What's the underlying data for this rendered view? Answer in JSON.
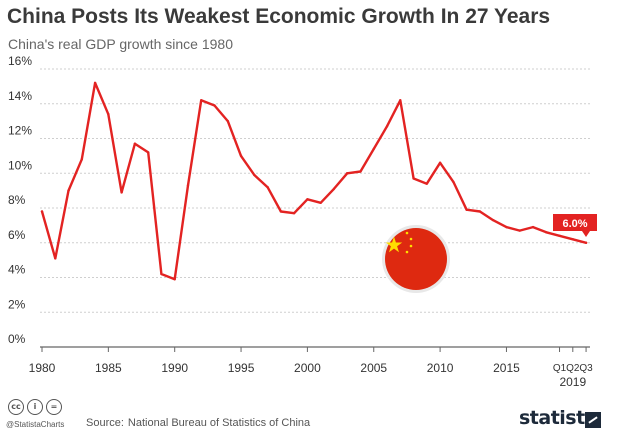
{
  "header": {
    "title": "China Posts Its Weakest Economic Growth In 27 Years",
    "subtitle": "China's real GDP growth since 1980"
  },
  "footer": {
    "handle": "@StatistaCharts",
    "source_label": "Source:",
    "source": "National Bureau of Statistics of China",
    "brand": "statista",
    "license_icons": [
      "cc-icon",
      "by-icon",
      "nd-icon"
    ]
  },
  "colors": {
    "line": "#e32322",
    "grid": "#cfcfcf",
    "axis_text": "#333333",
    "flag_red": "#de2910",
    "flag_star": "#ffde00"
  },
  "decoration": {
    "flag_icon": "china-flag-icon"
  },
  "chart_data": {
    "type": "line",
    "title": "China Posts Its Weakest Economic Growth In 27 Years",
    "subtitle": "China's real GDP growth since 1980",
    "xlabel": "",
    "ylabel": "",
    "ylim": [
      0,
      16
    ],
    "y_ticks": [
      "0%",
      "2%",
      "4%",
      "6%",
      "8%",
      "10%",
      "12%",
      "14%",
      "16%"
    ],
    "x_ticks": [
      "1980",
      "1985",
      "1990",
      "1995",
      "2000",
      "2005",
      "2010",
      "2015"
    ],
    "quarter_ticks": [
      "Q1",
      "Q2",
      "Q3"
    ],
    "quarter_year": "2019",
    "grid": true,
    "end_label": "6.0%",
    "series": [
      {
        "x": [
          1980,
          1981,
          1982,
          1983,
          1984,
          1985,
          1986,
          1987,
          1988,
          1989,
          1990,
          1991,
          1992,
          1993,
          1994,
          1995,
          1996,
          1997,
          1998,
          1999,
          2000,
          2001,
          2002,
          2003,
          2004,
          2005,
          2006,
          2007,
          2008,
          2009,
          2010,
          2011,
          2012,
          2013,
          2014,
          2015,
          2016,
          2017,
          2018,
          "2019 Q1",
          "2019 Q2",
          "2019 Q3"
        ],
        "values": [
          7.8,
          5.1,
          9.0,
          10.8,
          15.2,
          13.4,
          8.9,
          11.7,
          11.2,
          4.2,
          3.9,
          9.3,
          14.2,
          13.9,
          13.0,
          11.0,
          9.9,
          9.2,
          7.8,
          7.7,
          8.5,
          8.3,
          9.1,
          10.0,
          10.1,
          11.4,
          12.7,
          14.2,
          9.7,
          9.4,
          10.6,
          9.5,
          7.9,
          7.8,
          7.3,
          6.9,
          6.7,
          6.9,
          6.6,
          6.4,
          6.2,
          6.0
        ]
      }
    ]
  }
}
